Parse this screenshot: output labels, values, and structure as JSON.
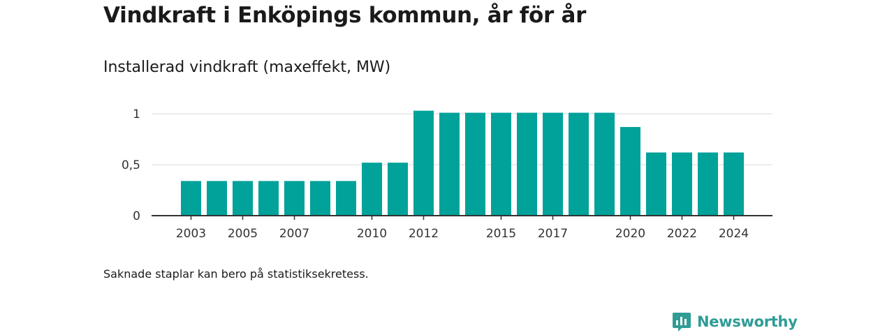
{
  "page": {
    "title": "Vindkraft i Enköpings kommun, år för år",
    "footnote": "Saknade staplar kan bero på statistiksekretess.",
    "brand": "Newsworthy",
    "colors": {
      "bar": "#00a29a",
      "grid": "#d9d9d9",
      "axis": "#333333",
      "brand": "#2f9c95"
    }
  },
  "chart_data": {
    "type": "bar",
    "title": "Installerad vindkraft (maxeffekt, MW)",
    "xlabel": "",
    "ylabel": "",
    "categories": [
      "2003",
      "2004",
      "2005",
      "2006",
      "2007",
      "2008",
      "2009",
      "2010",
      "2011",
      "2012",
      "2013",
      "2014",
      "2015",
      "2016",
      "2017",
      "2018",
      "2019",
      "2020",
      "2021",
      "2022",
      "2023",
      "2024"
    ],
    "values": [
      0.34,
      0.34,
      0.34,
      0.34,
      0.34,
      0.34,
      0.34,
      0.52,
      0.52,
      1.03,
      1.01,
      1.01,
      1.01,
      1.01,
      1.01,
      1.01,
      1.01,
      0.87,
      0.62,
      0.62,
      0.62,
      0.62
    ],
    "x_tick_labels": [
      "2003",
      "",
      "2005",
      "",
      "2007",
      "",
      "",
      "2010",
      "",
      "2012",
      "",
      "",
      "2015",
      "",
      "2017",
      "",
      "",
      "2020",
      "",
      "2022",
      "",
      "2024"
    ],
    "y_ticks": [
      0,
      0.5,
      1
    ],
    "y_tick_labels": [
      "0",
      "0,5",
      "1"
    ],
    "ylim": [
      0,
      1.03
    ],
    "grid": true,
    "legend": "none"
  }
}
